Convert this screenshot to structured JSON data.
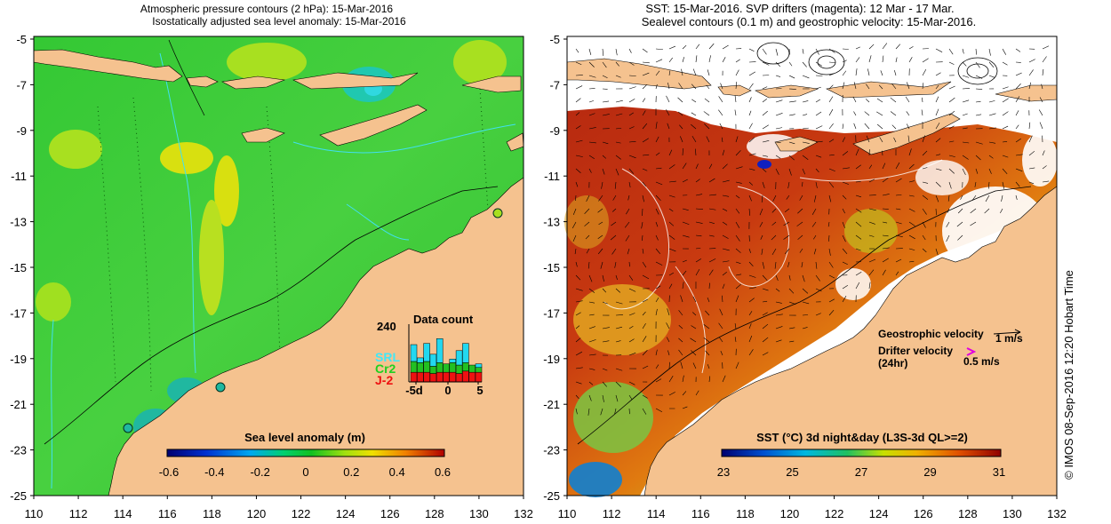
{
  "left_panel": {
    "title_line1": "Atmospheric pressure contours (2 hPa): 15-Mar-2016",
    "title_line2": "Isostatically adjusted sea level anomaly: 15-Mar-2016",
    "y_ticks": [
      "-5",
      "-7",
      "-9",
      "-11",
      "-13",
      "-15",
      "-17",
      "-19",
      "-21",
      "-23",
      "-25"
    ],
    "x_ticks": [
      "110",
      "112",
      "114",
      "116",
      "118",
      "120",
      "122",
      "124",
      "126",
      "128",
      "130",
      "132"
    ],
    "colorbar_label": "Sea level anomaly (m)",
    "colorbar_ticks": [
      "-0.6",
      "-0.4",
      "-0.2",
      "0",
      "0.2",
      "0.4",
      "0.6"
    ],
    "inset": {
      "title": "Data count",
      "ymax_label": "240",
      "x_ticks": [
        "-5d",
        "0",
        "5"
      ],
      "series": [
        {
          "name": "SRL",
          "color": "#22d8f0"
        },
        {
          "name": "Cr2",
          "color": "#22c022"
        },
        {
          "name": "J-2",
          "color": "#ee1111"
        }
      ],
      "bars": [
        {
          "J2": 40,
          "Cr2": 45,
          "SRL": 70
        },
        {
          "J2": 40,
          "Cr2": 40,
          "SRL": 20
        },
        {
          "J2": 40,
          "Cr2": 45,
          "SRL": 75
        },
        {
          "J2": 35,
          "Cr2": 30,
          "SRL": 50
        },
        {
          "J2": 40,
          "Cr2": 40,
          "SRL": 100
        },
        {
          "J2": 40,
          "Cr2": 35,
          "SRL": 0
        },
        {
          "J2": 40,
          "Cr2": 40,
          "SRL": 15
        },
        {
          "J2": 35,
          "Cr2": 35,
          "SRL": 60
        },
        {
          "J2": 45,
          "Cr2": 35,
          "SRL": 80
        },
        {
          "J2": 40,
          "Cr2": 30,
          "SRL": 0
        },
        {
          "J2": 40,
          "Cr2": 20,
          "SRL": 15
        }
      ]
    }
  },
  "right_panel": {
    "title_line1": "SST: 15-Mar-2016. SVP drifters (magenta): 12 Mar - 17 Mar.",
    "title_line2": "Sealevel contours (0.1 m) and geostrophic velocity: 15-Mar-2016.",
    "y_ticks": [
      "-5",
      "-7",
      "-9",
      "-11",
      "-13",
      "-15",
      "-17",
      "-19",
      "-21",
      "-23",
      "-25"
    ],
    "x_ticks": [
      "110",
      "112",
      "114",
      "116",
      "118",
      "120",
      "122",
      "124",
      "126",
      "128",
      "130",
      "132"
    ],
    "colorbar_label": "SST (°C) 3d night&day (L3S-3d QL>=2)",
    "colorbar_ticks": [
      "23",
      "25",
      "27",
      "29",
      "31"
    ],
    "legend_geostrophic": "Geostrophic velocity",
    "legend_geostrophic_scale": "1 m/s",
    "legend_drifter_line1": "Drifter velocity",
    "legend_drifter_line2": "(24hr)",
    "legend_drifter_scale": "0.5 m/s"
  },
  "credit": "© IMOS 08-Sep-2016 12:20 Hobart Time",
  "colors": {
    "land": "#f5c28f",
    "sla_colormap": [
      "#000070",
      "#0020d0",
      "#00a0f0",
      "#00d090",
      "#00c020",
      "#80e010",
      "#f0e000",
      "#f08000",
      "#c01000"
    ],
    "sst_colormap": [
      "#000080",
      "#0040d0",
      "#00b0e0",
      "#20c060",
      "#c0e000",
      "#f0b000",
      "#e06000",
      "#c02000",
      "#900000"
    ]
  }
}
